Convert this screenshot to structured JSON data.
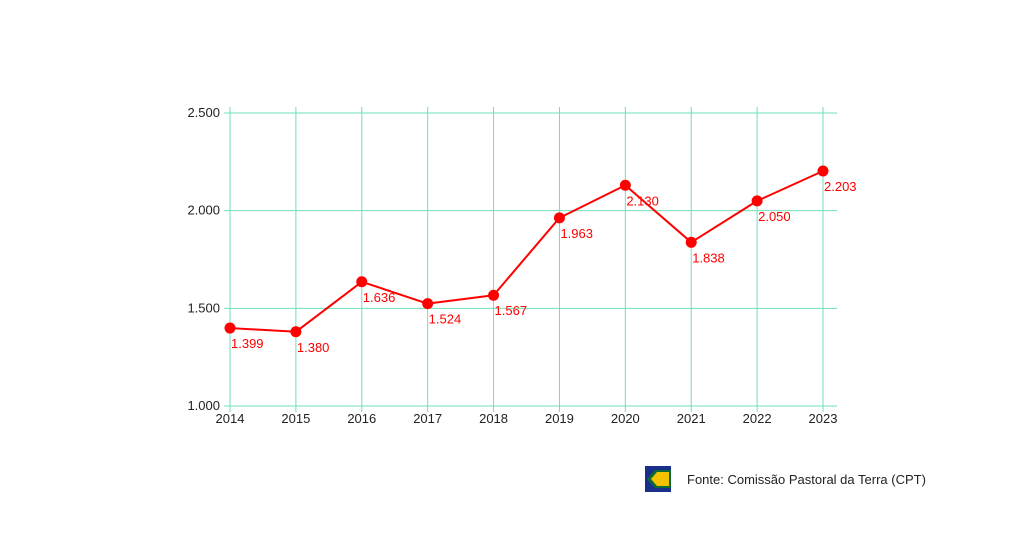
{
  "colors": {
    "line": "#ff0000",
    "grid": "#6ee0b8",
    "label": "#ff0000",
    "logo_blue": "#1a2f8a",
    "logo_yellow": "#f2c200",
    "logo_green": "#0a6a33"
  },
  "chart_data": {
    "type": "line",
    "title": "",
    "xlabel": "",
    "ylabel": "",
    "x": [
      "2014",
      "2015",
      "2016",
      "2017",
      "2018",
      "2019",
      "2020",
      "2021",
      "2022",
      "2023"
    ],
    "series": [
      {
        "values": [
          1399,
          1380,
          1636,
          1524,
          1567,
          1963,
          2130,
          1838,
          2050,
          2203
        ]
      }
    ],
    "value_labels": [
      "1.399",
      "1.380",
      "1.636",
      "1.524",
      "1.567",
      "1.963",
      "2.130",
      "1.838",
      "2.050",
      "2.203"
    ],
    "ylim": [
      1000,
      2500
    ],
    "yticks": [
      1000,
      1500,
      2000,
      2500
    ],
    "ytick_labels": [
      "1.000",
      "1.500",
      "2.000",
      "2.500"
    ],
    "grid": true,
    "legend": "none"
  },
  "source": {
    "text": "Fonte: Comissão Pastoral da Terra (CPT)",
    "logo_icon": "brazil-logo-icon"
  }
}
